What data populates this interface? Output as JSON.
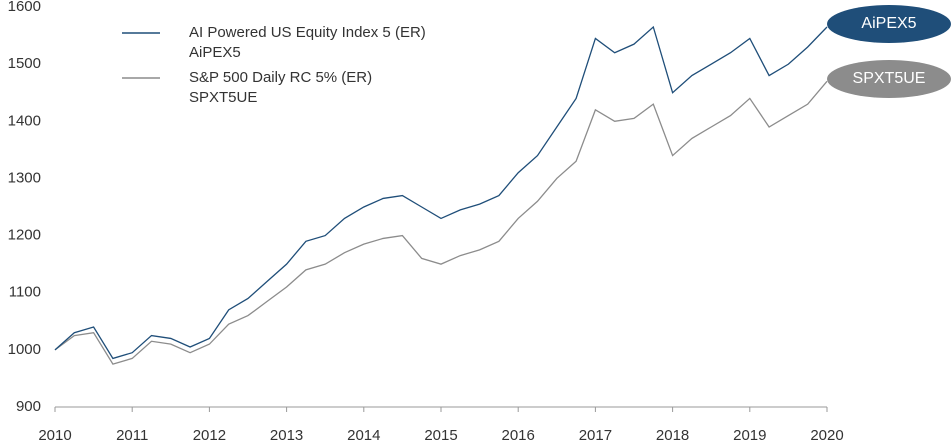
{
  "chart_data": {
    "type": "line",
    "xlim": [
      2010,
      2020
    ],
    "xticks": [
      2010,
      2011,
      2012,
      2013,
      2014,
      2015,
      2016,
      2017,
      2018,
      2019,
      2020
    ],
    "ylim": [
      900,
      1600
    ],
    "yticks": [
      900,
      1000,
      1100,
      1200,
      1300,
      1400,
      1500,
      1600
    ],
    "x": [
      2010,
      2010.25,
      2010.5,
      2010.75,
      2011,
      2011.25,
      2011.5,
      2011.75,
      2012,
      2012.25,
      2012.5,
      2012.75,
      2013,
      2013.25,
      2013.5,
      2013.75,
      2014,
      2014.25,
      2014.5,
      2014.75,
      2015,
      2015.25,
      2015.5,
      2015.75,
      2016,
      2016.25,
      2016.5,
      2016.75,
      2017,
      2017.25,
      2017.5,
      2017.75,
      2018,
      2018.25,
      2018.5,
      2018.75,
      2019,
      2019.25,
      2019.5,
      2019.75,
      2020
    ],
    "series": [
      {
        "name": "AI Powered US Equity Index 5 (ER)",
        "ticker": "AiPEX5",
        "color": "#1f4e79",
        "values": [
          1000,
          1030,
          1040,
          985,
          995,
          1025,
          1020,
          1005,
          1020,
          1070,
          1090,
          1120,
          1150,
          1190,
          1200,
          1230,
          1250,
          1265,
          1270,
          1250,
          1230,
          1245,
          1255,
          1270,
          1310,
          1340,
          1390,
          1440,
          1545,
          1520,
          1535,
          1565,
          1450,
          1480,
          1500,
          1520,
          1545,
          1480,
          1500,
          1530,
          1565
        ]
      },
      {
        "name": "S&P 500 Daily RC 5% (ER)",
        "ticker": "SPXT5UE",
        "color": "#8c8c8c",
        "values": [
          1000,
          1025,
          1030,
          975,
          985,
          1015,
          1010,
          995,
          1010,
          1045,
          1060,
          1085,
          1110,
          1140,
          1150,
          1170,
          1185,
          1195,
          1200,
          1160,
          1150,
          1165,
          1175,
          1190,
          1230,
          1260,
          1300,
          1330,
          1420,
          1400,
          1405,
          1430,
          1340,
          1370,
          1390,
          1410,
          1440,
          1390,
          1410,
          1430,
          1470
        ]
      }
    ]
  }
}
